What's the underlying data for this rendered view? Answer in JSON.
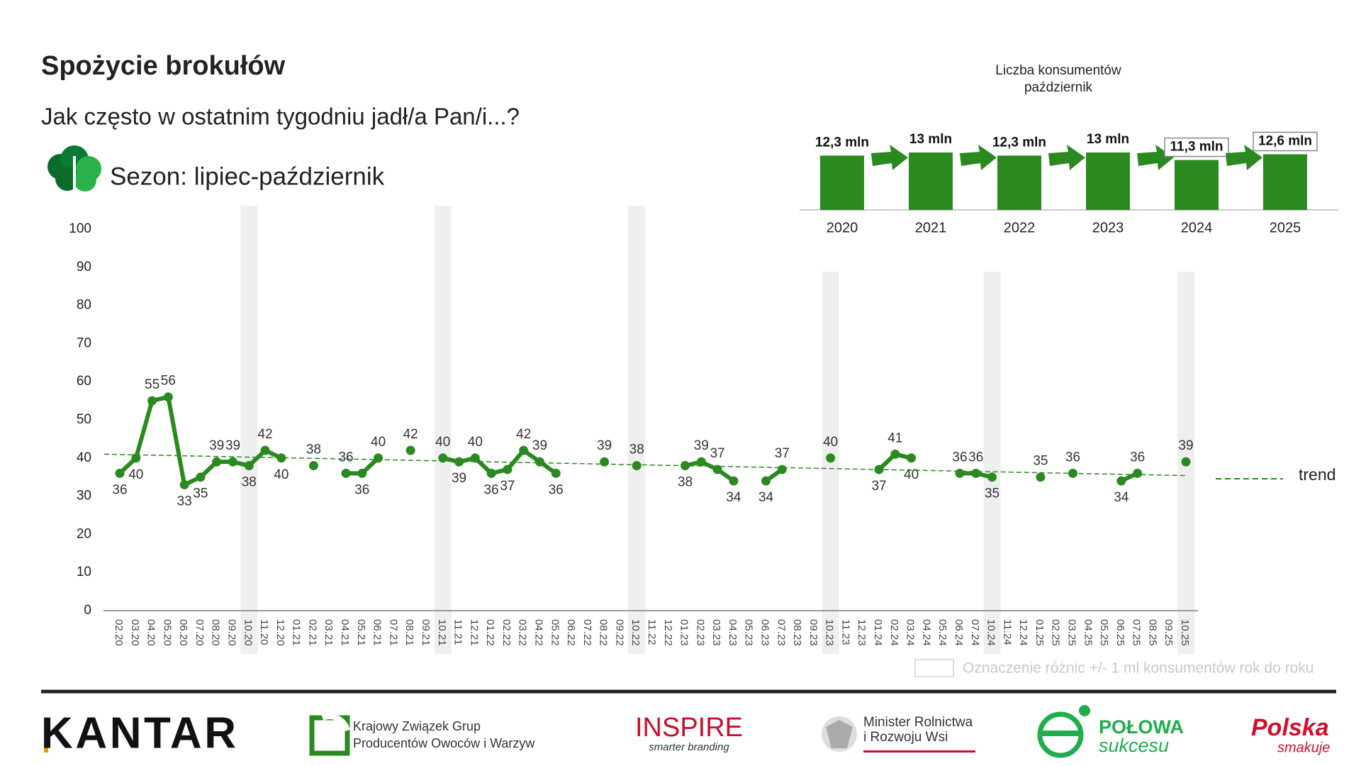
{
  "chart_data": [
    {
      "type": "line",
      "title": "Spożycie brokułów",
      "subtitle": "Jak często w ostatnim tygodniu jadł/a Pan/i...?",
      "season": "Sezon: lipiec-październik",
      "categories": [
        "02.20",
        "03.20",
        "04.20",
        "05.20",
        "06.20",
        "07.20",
        "08.20",
        "09.20",
        "10.20",
        "11.20",
        "12.20",
        "01.21",
        "02.21",
        "03.21",
        "04.21",
        "05.21",
        "06.21",
        "07.21",
        "08.21",
        "09.21",
        "10.21",
        "11.21",
        "12.21",
        "01.22",
        "02.22",
        "03.22",
        "04.22",
        "05.22",
        "06.22",
        "07.22",
        "08.22",
        "09.22",
        "10.22",
        "11.22",
        "12.22",
        "01.23",
        "02.23",
        "03.23",
        "04.23",
        "05.23",
        "06.23",
        "07.23",
        "08.23",
        "09.23",
        "10.23",
        "11.23",
        "12.23",
        "01.24",
        "02.24",
        "03.24",
        "04.24",
        "05.24",
        "06.24",
        "07.24",
        "10.24",
        "11.24",
        "12.24",
        "01.25",
        "02.25",
        "03.25",
        "04.25",
        "05.25",
        "06.25",
        "07.25",
        "08.25",
        "09.25",
        "10.25"
      ],
      "series": [
        {
          "name": "Spożycie",
          "color": "#2a8a1f",
          "values": [
            36,
            40,
            55,
            56,
            33,
            35,
            39,
            39,
            38,
            42,
            40,
            null,
            38,
            null,
            36,
            36,
            40,
            null,
            42,
            null,
            40,
            39,
            40,
            36,
            37,
            42,
            39,
            36,
            null,
            null,
            39,
            null,
            38,
            null,
            null,
            38,
            39,
            37,
            34,
            null,
            34,
            37,
            null,
            null,
            40,
            null,
            null,
            37,
            41,
            40,
            null,
            null,
            36,
            36,
            35,
            null,
            null,
            35,
            null,
            36,
            null,
            null,
            34,
            36,
            null,
            null,
            39
          ]
        }
      ],
      "trend": {
        "name": "trend",
        "values": [
          41,
          35.4
        ],
        "color": "#2a8a1f"
      },
      "highlight_indices": [
        8,
        20,
        32,
        44,
        54,
        66
      ],
      "highlight_legend": "Oznaczenie różnic +/- 1 ml konsumentów rok do roku",
      "ylim": [
        0,
        100
      ],
      "yticks": [
        0,
        10,
        20,
        30,
        40,
        50,
        60,
        70,
        80,
        90,
        100
      ]
    },
    {
      "type": "bar",
      "title": "Liczba konsumentów",
      "subtitle": "październik",
      "categories": [
        "2020",
        "2021",
        "2022",
        "2023",
        "2024",
        "2025"
      ],
      "values": [
        12.3,
        13,
        12.3,
        13,
        11.3,
        12.6
      ],
      "value_labels": [
        "12,3 mln",
        "13 mln",
        "12,3 mln",
        "13 mln",
        "11,3 mln",
        "12,6 mln"
      ],
      "boxed": [
        false,
        false,
        false,
        false,
        true,
        true
      ],
      "color": "#2a8a1f",
      "ylim": [
        0,
        13
      ]
    }
  ],
  "footer": {
    "kantar": "KANTAR",
    "kzgpow": [
      "Krajowy Związek Grup",
      "Producentów Owoców i Warzyw"
    ],
    "inspire": [
      "INSPIRE",
      "smarter branding"
    ],
    "ministry": [
      "Minister Rolnictwa",
      "i Rozwoju Wsi"
    ],
    "polowa": [
      "POŁOWA",
      "sukcesu"
    ],
    "polska": [
      "Polska",
      "smakuje"
    ]
  }
}
